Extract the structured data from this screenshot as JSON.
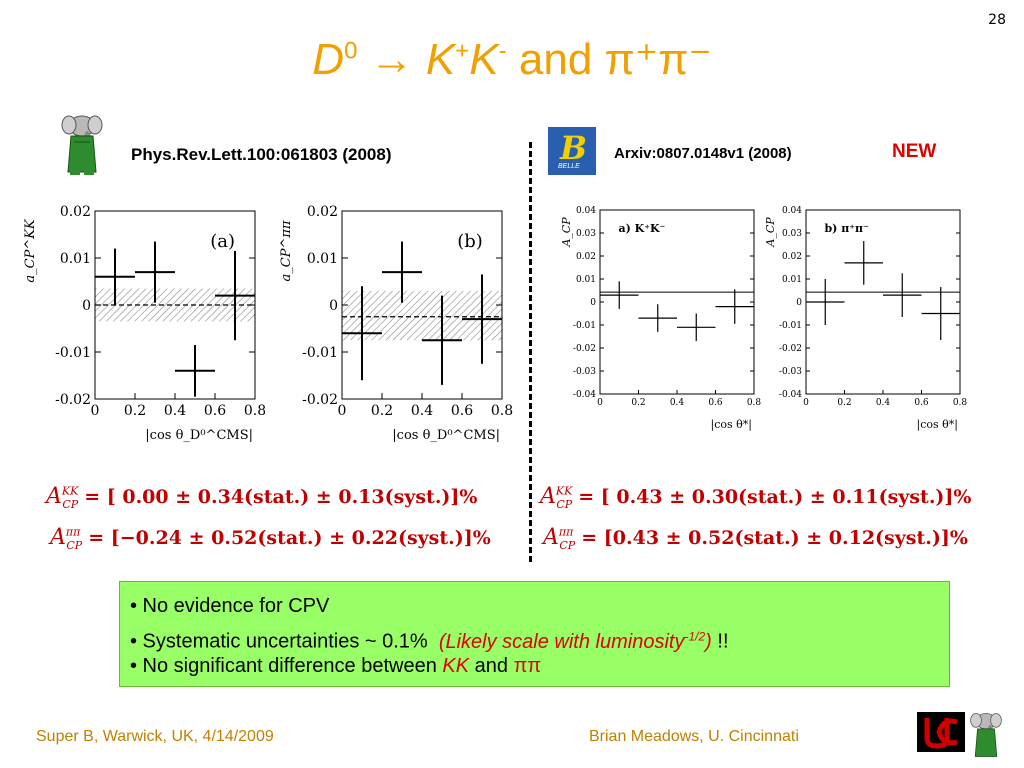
{
  "page_number": "28",
  "title": {
    "d_letter": "D",
    "d_sup": "0",
    "arrow": "→",
    "k1": "K",
    "k1_sup": "+",
    "k2": "K",
    "k2_sup": "-",
    "and_word": "and",
    "pi_text": "π⁺π⁻"
  },
  "left": {
    "reference": "Phys.Rev.Lett.100:061803 (2008)",
    "logo_icon": "babar-elephant-icon",
    "formula_kk": {
      "lhs": "A",
      "sup": "KK",
      "sub": "CP",
      "rhs": "=  [  0.00 ± 0.34(stat.) ± 0.13(syst.)]%"
    },
    "formula_pipi": {
      "lhs": "A",
      "sup": "ππ",
      "sub": "CP",
      "rhs": "=  [−0.24 ± 0.52(stat.) ± 0.22(syst.)]%"
    }
  },
  "right": {
    "reference": "Arxiv:0807.0148v1 (2008)",
    "new_label": "NEW",
    "logo_icon": "belle-logo-icon",
    "logo_text": "BELLE",
    "formula_kk": {
      "lhs": "A",
      "sup": "KK",
      "sub": "CP",
      "rhs": "=  [  0.43 ± 0.30(stat.) ± 0.11(syst.)]%"
    },
    "formula_pipi": {
      "lhs": "A",
      "sup": "ππ",
      "sub": "CP",
      "rhs": "=  [0.43 ± 0.52(stat.) ± 0.12(syst.)]%"
    }
  },
  "summary": {
    "bullet1": "• No evidence for CPV",
    "bullet2_text": "• Systematic uncertainties ~ 0.1%",
    "bullet2_note_a": "(Likely scale with luminosity",
    "bullet2_note_sup": "-1/2",
    "bullet2_note_b": ")",
    "bullet2_tail": "!!",
    "bullet3_text": "• No significant difference between",
    "bullet3_kk": "KK",
    "bullet3_and": "and",
    "bullet3_pipi": "ππ",
    "background_color": "#99ff66"
  },
  "footer": {
    "left": "Super B, Warwick, UK, 4/14/2009",
    "right": "Brian Meadows, U. Cincinnati",
    "logo_icon": "uc-logo-icon"
  },
  "chart_data": [
    {
      "type": "scatter",
      "panel_label": "(a)",
      "xlabel": "|cos θ_D⁰^CMS|",
      "ylabel": "a_CP^KK",
      "xlim": [
        0,
        0.8
      ],
      "ylim": [
        -0.02,
        0.02
      ],
      "yticks": [
        -0.02,
        -0.01,
        0,
        0.01,
        0.02
      ],
      "ytick_labels": [
        "-0.02",
        "-0.01",
        "0",
        "0.01",
        "0.02"
      ],
      "xticks": [
        0,
        0.2,
        0.4,
        0.6,
        0.8
      ],
      "xtick_labels": [
        "0",
        "0.2",
        "0.4",
        "0.6",
        "0.8"
      ],
      "band": {
        "center": 0,
        "low": -0.0035,
        "high": 0.0035
      },
      "points": [
        {
          "x": 0.1,
          "y": 0.006,
          "xerr": 0.1,
          "yerr": 0.006
        },
        {
          "x": 0.3,
          "y": 0.007,
          "xerr": 0.1,
          "yerr": 0.0065
        },
        {
          "x": 0.5,
          "y": -0.014,
          "xerr": 0.1,
          "yerr": 0.0055
        },
        {
          "x": 0.7,
          "y": 0.002,
          "xerr": 0.1,
          "yerr": 0.0095
        }
      ]
    },
    {
      "type": "scatter",
      "panel_label": "(b)",
      "xlabel": "|cos θ_D⁰^CMS|",
      "ylabel": "a_CP^ππ",
      "xlim": [
        0,
        0.8
      ],
      "ylim": [
        -0.02,
        0.02
      ],
      "yticks": [
        -0.02,
        -0.01,
        0,
        0.01,
        0.02
      ],
      "ytick_labels": [
        "-0.02",
        "-0.01",
        "0",
        "0.01",
        "0.02"
      ],
      "xticks": [
        0,
        0.2,
        0.4,
        0.6,
        0.8
      ],
      "xtick_labels": [
        "0",
        "0.2",
        "0.4",
        "0.6",
        "0.8"
      ],
      "band": {
        "center": -0.0025,
        "low": -0.0075,
        "high": 0.003
      },
      "points": [
        {
          "x": 0.1,
          "y": -0.006,
          "xerr": 0.1,
          "yerr": 0.01
        },
        {
          "x": 0.3,
          "y": 0.007,
          "xerr": 0.1,
          "yerr": 0.0065
        },
        {
          "x": 0.5,
          "y": -0.0075,
          "xerr": 0.1,
          "yerr": 0.0095
        },
        {
          "x": 0.7,
          "y": -0.003,
          "xerr": 0.1,
          "yerr": 0.0095
        }
      ]
    },
    {
      "type": "scatter",
      "panel_label": "a) K⁺K⁻",
      "xlabel": "|cos θ*|",
      "ylabel": "A_CP",
      "xlim": [
        0,
        0.8
      ],
      "ylim": [
        -0.04,
        0.04
      ],
      "yticks": [
        -0.04,
        -0.03,
        -0.02,
        -0.01,
        0,
        0.01,
        0.02,
        0.03,
        0.04
      ],
      "ytick_labels": [
        "-0.04",
        "-0.03",
        "-0.02",
        "-0.01",
        "0",
        "0.01",
        "0.02",
        "0.03",
        "0.04"
      ],
      "xticks": [
        0,
        0.2,
        0.4,
        0.6,
        0.8
      ],
      "xtick_labels": [
        "0",
        "0.2",
        "0.4",
        "0.6",
        "0.8"
      ],
      "fit_line": 0.0043,
      "points": [
        {
          "x": 0.1,
          "y": 0.003,
          "xerr": 0.1,
          "yerr": 0.006
        },
        {
          "x": 0.3,
          "y": -0.007,
          "xerr": 0.1,
          "yerr": 0.006
        },
        {
          "x": 0.5,
          "y": -0.011,
          "xerr": 0.1,
          "yerr": 0.006
        },
        {
          "x": 0.7,
          "y": -0.002,
          "xerr": 0.1,
          "yerr": 0.0075
        }
      ]
    },
    {
      "type": "scatter",
      "panel_label": "b) π⁺π⁻",
      "xlabel": "|cos θ*|",
      "ylabel": "A_CP",
      "xlim": [
        0,
        0.8
      ],
      "ylim": [
        -0.04,
        0.04
      ],
      "yticks": [
        -0.04,
        -0.03,
        -0.02,
        -0.01,
        0,
        0.01,
        0.02,
        0.03,
        0.04
      ],
      "ytick_labels": [
        "-0.04",
        "-0.03",
        "-0.02",
        "-0.01",
        "0",
        "0.01",
        "0.02",
        "0.03",
        "0.04"
      ],
      "xticks": [
        0,
        0.2,
        0.4,
        0.6,
        0.8
      ],
      "xtick_labels": [
        "0",
        "0.2",
        "0.4",
        "0.6",
        "0.8"
      ],
      "fit_line": 0.0043,
      "points": [
        {
          "x": 0.1,
          "y": 0.0,
          "xerr": 0.1,
          "yerr": 0.01
        },
        {
          "x": 0.3,
          "y": 0.017,
          "xerr": 0.1,
          "yerr": 0.0095
        },
        {
          "x": 0.5,
          "y": 0.003,
          "xerr": 0.1,
          "yerr": 0.0095
        },
        {
          "x": 0.7,
          "y": -0.005,
          "xerr": 0.1,
          "yerr": 0.0115
        }
      ]
    }
  ]
}
